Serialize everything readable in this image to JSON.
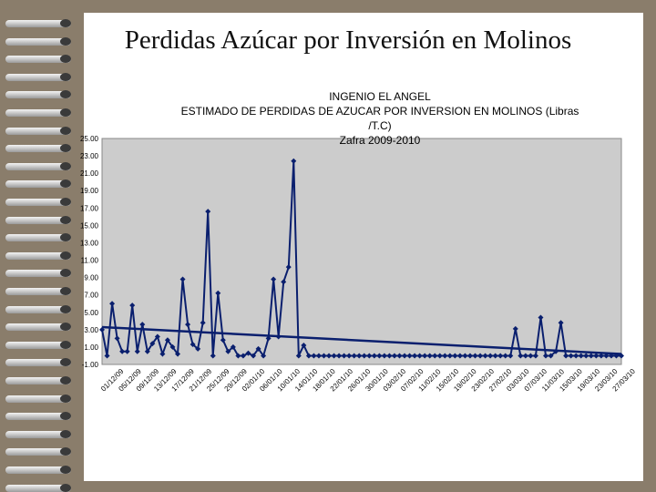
{
  "slide": {
    "title": "Perdidas Azúcar por Inversión en Molinos"
  },
  "chart_data": {
    "type": "line",
    "title_lines": [
      "INGENIO EL ANGEL",
      "ESTIMADO DE PERDIDAS DE AZUCAR POR INVERSION EN MOLINOS (Libras",
      "/T.C)",
      "Zafra 2009-2010"
    ],
    "ylim": [
      -1,
      25
    ],
    "y_ticks": [
      "-1.00",
      "1.00",
      "3.00",
      "5.00",
      "7.00",
      "9.00",
      "11.00",
      "13.00",
      "15.00",
      "17.00",
      "19.00",
      "21.00",
      "23.00",
      "25.00"
    ],
    "y_tick_values": [
      -1,
      1,
      3,
      5,
      7,
      9,
      11,
      13,
      15,
      17,
      19,
      21,
      23,
      25
    ],
    "x_tick_labels": [
      "01/12/09",
      "05/12/09",
      "09/12/09",
      "13/12/09",
      "17/12/09",
      "21/12/09",
      "25/12/09",
      "29/12/09",
      "02/01/10",
      "06/01/10",
      "10/01/10",
      "14/01/10",
      "18/01/10",
      "22/01/10",
      "26/01/10",
      "30/01/10",
      "03/02/10",
      "07/02/10",
      "11/02/10",
      "15/02/10",
      "19/02/10",
      "23/02/10",
      "27/02/10",
      "03/03/10",
      "07/03/10",
      "11/03/10",
      "15/03/10",
      "19/03/10",
      "23/03/10",
      "27/03/10"
    ],
    "series": [
      {
        "color": "#0a1f6e",
        "marker": "diamond",
        "values": [
          3.0,
          0.0,
          6.0,
          2.0,
          0.5,
          0.5,
          5.8,
          0.5,
          3.6,
          0.5,
          1.4,
          2.2,
          0.2,
          1.8,
          1.0,
          0.2,
          8.8,
          3.6,
          1.3,
          0.8,
          3.8,
          16.6,
          0.0,
          7.2,
          1.8,
          0.5,
          1.0,
          0.0,
          0.0,
          0.3,
          0.0,
          0.8,
          0.0,
          2.0,
          8.8,
          2.2,
          8.5,
          10.2,
          22.4,
          0.0,
          1.2,
          0.0,
          0,
          0,
          0,
          0,
          0,
          0,
          0,
          0,
          0,
          0,
          0,
          0,
          0,
          0,
          0,
          0,
          0,
          0,
          0,
          0,
          0,
          0,
          0,
          0,
          0,
          0,
          0,
          0,
          0,
          0,
          0,
          0,
          0,
          0,
          0,
          0,
          0,
          0,
          0,
          0,
          3.1,
          0.0,
          0.0,
          0.0,
          0.0,
          4.4,
          0.0,
          0.0,
          0.5,
          3.8,
          0.0,
          0,
          0,
          0,
          0,
          0,
          0,
          0,
          0,
          0,
          0,
          0
        ]
      }
    ],
    "trendline": {
      "start": 3.3,
      "end": 0.2,
      "color": "#0a1f6e"
    },
    "plot_background": "#cccccc",
    "grid": false
  }
}
